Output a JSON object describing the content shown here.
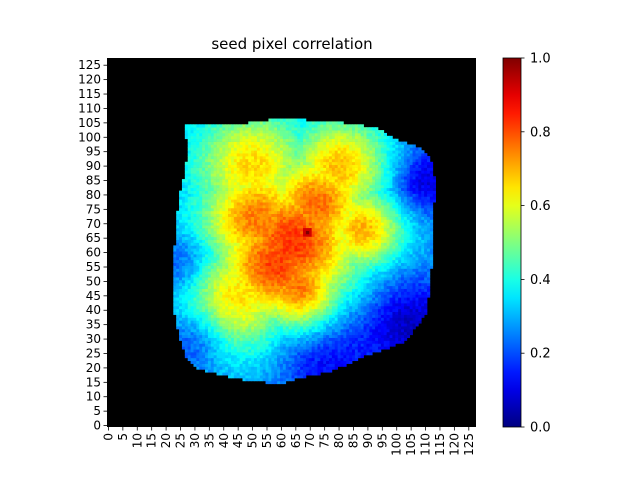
{
  "chart_data": {
    "type": "heatmap",
    "title": "seed pixel correlation",
    "xlabel": "",
    "ylabel": "",
    "grid": false,
    "x_range": [
      0,
      127
    ],
    "y_range": [
      0,
      127
    ],
    "x_tick_labels": [
      "0",
      "5",
      "10",
      "15",
      "20",
      "25",
      "30",
      "35",
      "40",
      "45",
      "50",
      "55",
      "60",
      "65",
      "70",
      "75",
      "80",
      "85",
      "90",
      "95",
      "100",
      "105",
      "110",
      "115",
      "120",
      "125"
    ],
    "y_tick_labels": [
      "0",
      "5",
      "10",
      "15",
      "20",
      "25",
      "30",
      "35",
      "40",
      "45",
      "50",
      "55",
      "60",
      "65",
      "70",
      "75",
      "80",
      "85",
      "90",
      "95",
      "100",
      "105",
      "110",
      "115",
      "120",
      "125"
    ],
    "colormap": "jet",
    "value_range": [
      0.0,
      1.0
    ],
    "colorbar_ticks": [
      "0.0",
      "0.2",
      "0.4",
      "0.6",
      "0.8",
      "1.0"
    ],
    "background_value_color": "#000000",
    "seed_pixel": {
      "x": 69,
      "y": 67,
      "value": 1.0
    },
    "correlation_field": {
      "boundary": [
        [
          27,
          105
        ],
        [
          45,
          105
        ],
        [
          60,
          107
        ],
        [
          78,
          106
        ],
        [
          93,
          104
        ],
        [
          100,
          100
        ],
        [
          108,
          97
        ],
        [
          112,
          94
        ],
        [
          113,
          90
        ],
        [
          114,
          85
        ],
        [
          113,
          70
        ],
        [
          113,
          60
        ],
        [
          112,
          50
        ],
        [
          111,
          40
        ],
        [
          104,
          30
        ],
        [
          97,
          27
        ],
        [
          90,
          25
        ],
        [
          84,
          22
        ],
        [
          77,
          19
        ],
        [
          67,
          17
        ],
        [
          60,
          15
        ],
        [
          50,
          16
        ],
        [
          40,
          18
        ],
        [
          32,
          20
        ],
        [
          27,
          25
        ],
        [
          25,
          32
        ],
        [
          23,
          42
        ],
        [
          23,
          55
        ],
        [
          24,
          70
        ],
        [
          25,
          80
        ],
        [
          27,
          88
        ],
        [
          28,
          95
        ]
      ],
      "sources": [
        {
          "x": 69,
          "y": 67,
          "amplitude": 0.2,
          "radius": 1.5
        },
        {
          "x": 64,
          "y": 64,
          "amplitude": 0.8,
          "radius": 17
        },
        {
          "x": 58,
          "y": 56,
          "amplitude": 0.78,
          "radius": 15
        },
        {
          "x": 72,
          "y": 77,
          "amplitude": 0.72,
          "radius": 13
        },
        {
          "x": 88,
          "y": 68,
          "amplitude": 0.62,
          "radius": 10
        },
        {
          "x": 52,
          "y": 72,
          "amplitude": 0.7,
          "radius": 14
        },
        {
          "x": 66,
          "y": 48,
          "amplitude": 0.72,
          "radius": 11
        },
        {
          "x": 45,
          "y": 45,
          "amplitude": 0.55,
          "radius": 14
        },
        {
          "x": 80,
          "y": 90,
          "amplitude": 0.6,
          "radius": 12
        },
        {
          "x": 50,
          "y": 90,
          "amplitude": 0.56,
          "radius": 14
        }
      ],
      "baseline": 0.28,
      "low_regions": [
        {
          "x": 105,
          "y": 35,
          "amount": 0.22,
          "radius": 12
        },
        {
          "x": 110,
          "y": 85,
          "amount": 0.2,
          "radius": 8
        },
        {
          "x": 75,
          "y": 22,
          "amount": 0.16,
          "radius": 12
        },
        {
          "x": 26,
          "y": 55,
          "amount": 0.14,
          "radius": 7
        },
        {
          "x": 30,
          "y": 30,
          "amount": 0.15,
          "radius": 8
        }
      ]
    }
  }
}
